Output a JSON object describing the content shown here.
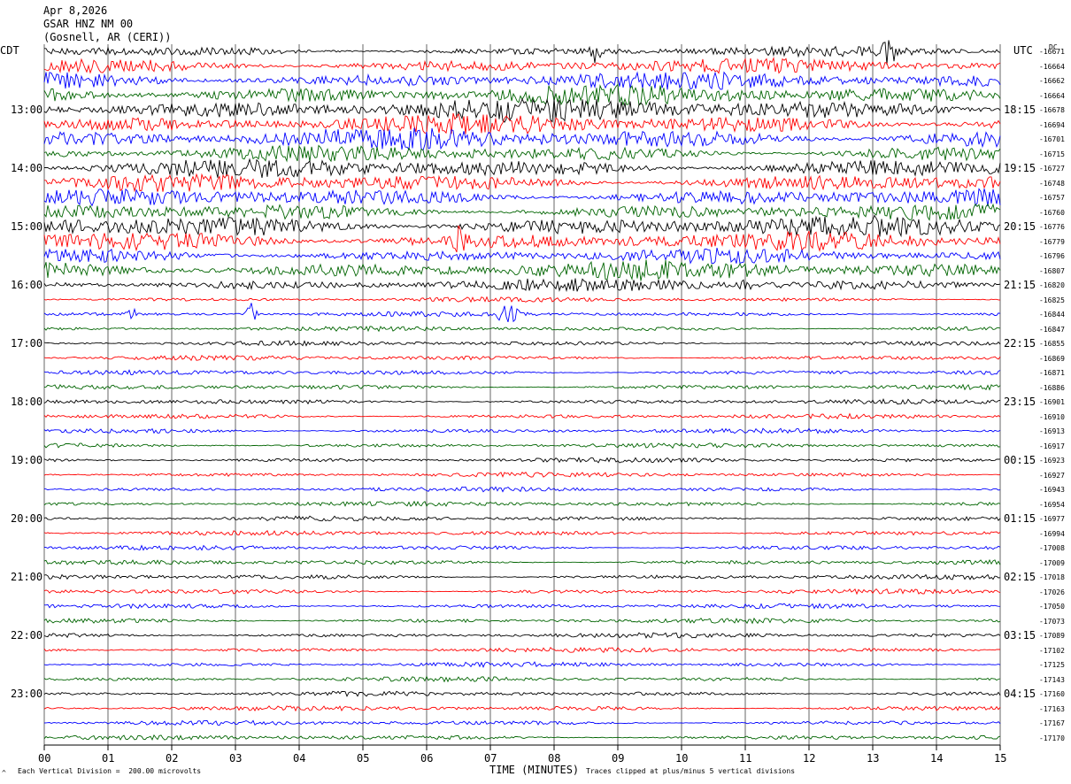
{
  "header": {
    "date": "Apr 8,2026",
    "station": "GSAR HNZ NM 00",
    "location": "(Gosnell, AR (CERI))"
  },
  "left_tz": "CDT",
  "right_tz": "UTC",
  "dc_label": "DC",
  "footer": {
    "scale_note": "Each Vertical Division =  200.00 microvolts",
    "clip_note": "Traces clipped at plus/minus 5 vertical divisions",
    "mark": "^"
  },
  "colors": {
    "trace_cycle": [
      "#000000",
      "#ff0000",
      "#0000ff",
      "#006400"
    ],
    "grid": "#000000"
  },
  "chart_data": {
    "type": "line",
    "title": "",
    "xlabel": "TIME (MINUTES)",
    "ylabel": "",
    "xlim": [
      0,
      15
    ],
    "x_ticks": [
      "00",
      "01",
      "02",
      "03",
      "04",
      "05",
      "06",
      "07",
      "08",
      "09",
      "10",
      "11",
      "12",
      "13",
      "14",
      "15"
    ],
    "minutes_per_line": 15,
    "trace_count": 48,
    "left_time_labels": [
      {
        "line": 4,
        "label": "13:00"
      },
      {
        "line": 8,
        "label": "14:00"
      },
      {
        "line": 12,
        "label": "15:00"
      },
      {
        "line": 16,
        "label": "16:00"
      },
      {
        "line": 20,
        "label": "17:00"
      },
      {
        "line": 24,
        "label": "18:00"
      },
      {
        "line": 28,
        "label": "19:00"
      },
      {
        "line": 32,
        "label": "20:00"
      },
      {
        "line": 36,
        "label": "21:00"
      },
      {
        "line": 40,
        "label": "22:00"
      },
      {
        "line": 44,
        "label": "23:00"
      }
    ],
    "right_time_labels": [
      {
        "line": 4,
        "label": "18:15"
      },
      {
        "line": 8,
        "label": "19:15"
      },
      {
        "line": 12,
        "label": "20:15"
      },
      {
        "line": 16,
        "label": "21:15"
      },
      {
        "line": 20,
        "label": "22:15"
      },
      {
        "line": 24,
        "label": "23:15"
      },
      {
        "line": 28,
        "label": "00:15"
      },
      {
        "line": 32,
        "label": "01:15"
      },
      {
        "line": 36,
        "label": "02:15"
      },
      {
        "line": 40,
        "label": "03:15"
      },
      {
        "line": 44,
        "label": "04:15"
      }
    ],
    "dc_offsets": [
      "-16671",
      "-16664",
      "-16662",
      "-16664",
      "-16678",
      "-16694",
      "-16701",
      "-16715",
      "-16727",
      "-16748",
      "-16757",
      "-16760",
      "-16776",
      "-16779",
      "-16796",
      "-16807",
      "-16820",
      "-16825",
      "-16844",
      "-16847",
      "-16855",
      "-16869",
      "-16871",
      "-16886",
      "-16901",
      "-16910",
      "-16913",
      "-16917",
      "-16923",
      "-16927",
      "-16943",
      "-16954",
      "-16977",
      "-16994",
      "-17008",
      "-17009",
      "-17018",
      "-17026",
      "-17050",
      "-17073",
      "-17089",
      "-17102",
      "-17125",
      "-17143",
      "-17160",
      "-17163",
      "-17167",
      "-17170"
    ],
    "trace_activity": [
      6,
      9,
      11,
      13,
      15,
      13,
      14,
      10,
      12,
      11,
      11,
      10,
      13,
      12,
      9,
      12,
      8,
      3,
      3,
      3,
      3,
      3,
      3,
      3,
      3,
      3,
      3,
      3,
      3,
      3,
      3,
      3,
      3,
      3,
      3,
      3,
      3,
      3,
      3,
      3,
      3,
      3,
      3,
      3,
      3,
      3,
      3,
      3
    ],
    "events": [
      {
        "line": 18,
        "minute": 1.35,
        "amp": 14
      },
      {
        "line": 18,
        "minute": 3.25,
        "amp": 12
      },
      {
        "line": 18,
        "minute": 7.2,
        "amp": 10
      },
      {
        "line": 18,
        "minute": 7.35,
        "amp": 12
      },
      {
        "line": 0,
        "minute": 8.65,
        "amp": 20
      },
      {
        "line": 0,
        "minute": 13.25,
        "amp": 22
      },
      {
        "line": 13,
        "minute": 6.5,
        "amp": 18
      },
      {
        "line": 16,
        "minute": 11.0,
        "amp": 10
      }
    ]
  }
}
